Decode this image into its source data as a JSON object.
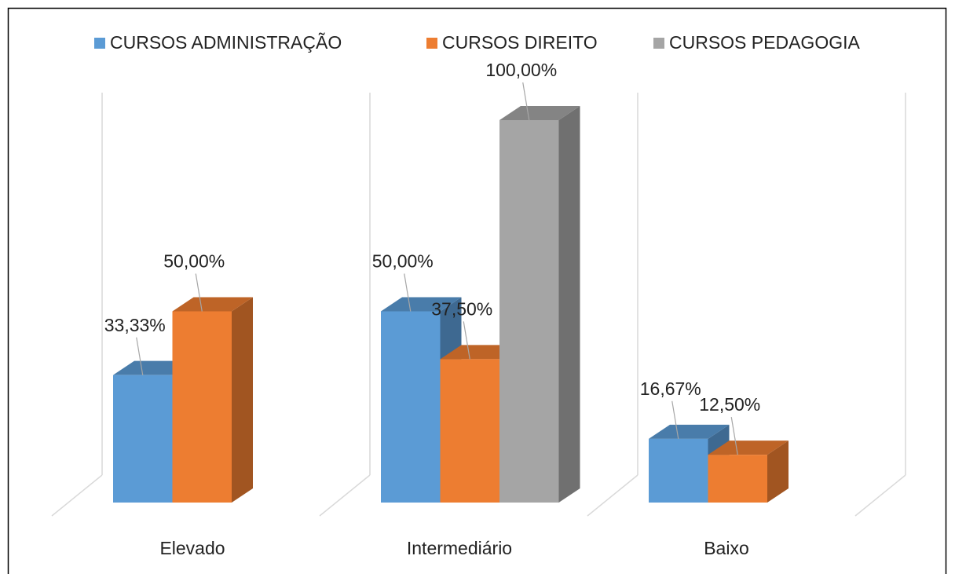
{
  "chart_data": {
    "type": "bar3d",
    "categories": [
      "Elevado",
      "Intermediário",
      "Baixo"
    ],
    "series": [
      {
        "name": "CURSOS ADMINISTRAÇÃO",
        "color": "#5b9bd5",
        "values": [
          33.33,
          50,
          16.67
        ],
        "value_labels": [
          "33,33%",
          "50,00%",
          "16,67%"
        ]
      },
      {
        "name": "CURSOS DIREITO",
        "color": "#ed7d31",
        "values": [
          50,
          37.5,
          12.5
        ],
        "value_labels": [
          "50,00%",
          "37,50%",
          "12,50%"
        ]
      },
      {
        "name": "CURSOS PEDAGOGIA",
        "color": "#a5a5a5",
        "values": [
          null,
          100,
          null
        ],
        "value_labels": [
          null,
          "100,00%",
          null
        ]
      }
    ],
    "legend": "top"
  }
}
